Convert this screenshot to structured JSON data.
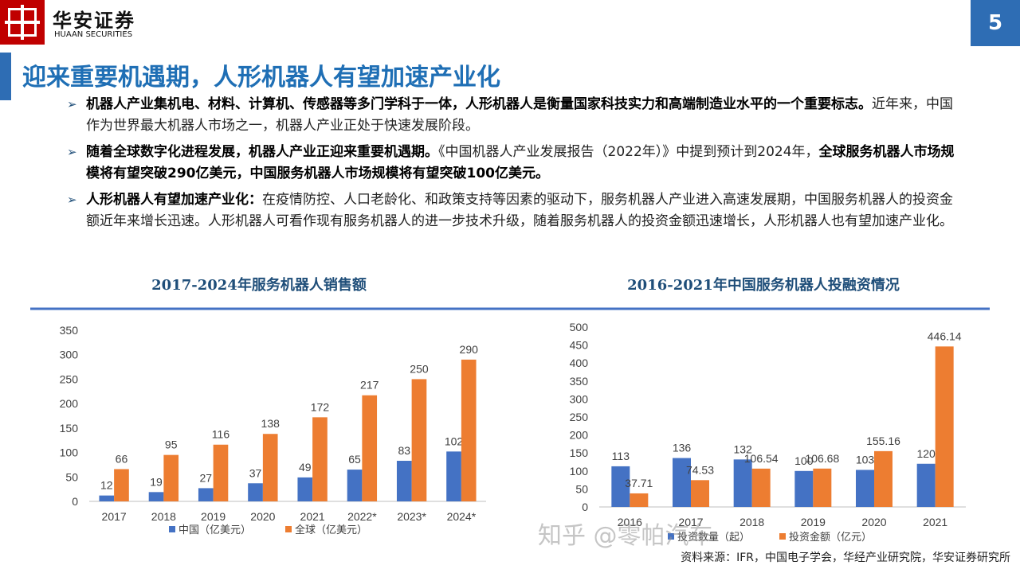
{
  "header": {
    "logo_cn": "华安证券",
    "logo_en": "HUAAN SECURITIES",
    "page": "5",
    "title": "迎来重要机遇期，人形机器人有望加速产业化"
  },
  "bullets": [
    [
      {
        "b": "机器人产业集机电、材料、计算机、传感器等多门学科于一体，人形机器人是衡量国家科技实力和高端制造业水平的一个重要标志。"
      },
      {
        "t": "近年来，中国作为世界最大机器人市场之一，机器人产业正处于快速发展阶段。"
      }
    ],
    [
      {
        "b": "随着全球数字化进程发展，机器人产业正迎来重要机遇期。"
      },
      {
        "t": "《中国机器人产业发展报告（2022年）》中提到预计到2024年，"
      },
      {
        "b": "全球服务机器人市场规模将有望突破290亿美元，中国服务机器人市场规模将有望突破100亿美元。"
      }
    ],
    [
      {
        "b": "人形机器人有望加速产业化："
      },
      {
        "t": "在疫情防控、人口老龄化、和政策支持等因素的驱动下，服务机器人产业进入高速发展期，中国服务机器人的投资金额近年来增长迅速。人形机器人可看作现有服务机器人的进一步技术升级，随着服务机器人的投资金额迅速增长，人形机器人也有望加速产业化。"
      }
    ]
  ],
  "chart_data": [
    {
      "type": "bar",
      "title": "2017-2024年服务机器人销售额",
      "categories": [
        "2017",
        "2018",
        "2019",
        "2020",
        "2021",
        "2022*",
        "2023*",
        "2024*"
      ],
      "series": [
        {
          "name": "中国（亿美元）",
          "color": "#4472c4",
          "values": [
            12,
            19,
            27,
            37,
            49,
            65,
            83,
            102
          ]
        },
        {
          "name": "全球（亿美元）",
          "color": "#ed7d31",
          "values": [
            66,
            95,
            116,
            138,
            172,
            217,
            250,
            290
          ]
        }
      ],
      "ylim": [
        0,
        350
      ],
      "yticks": [
        0,
        50,
        100,
        150,
        200,
        250,
        300,
        350
      ],
      "grid": false
    },
    {
      "type": "bar",
      "title": "2016-2021年中国服务机器人投融资情况",
      "categories": [
        "2016",
        "2017",
        "2018",
        "2019",
        "2020",
        "2021"
      ],
      "series": [
        {
          "name": "投资数量（起）",
          "color": "#4472c4",
          "values": [
            113,
            136,
            132,
            100,
            103,
            120
          ]
        },
        {
          "name": "投资金额（亿元）",
          "color": "#ed7d31",
          "values": [
            37.71,
            74.53,
            106.54,
            106.68,
            155.16,
            446.14
          ]
        }
      ],
      "ylim": [
        0,
        500
      ],
      "yticks": [
        0,
        50,
        100,
        150,
        200,
        250,
        300,
        350,
        400,
        450,
        500
      ],
      "grid": false
    }
  ],
  "source": "资料来源：IFR，中国电子学会，华经产业研究院，华安证券研究所",
  "watermark": "知乎 @零帕汽车"
}
